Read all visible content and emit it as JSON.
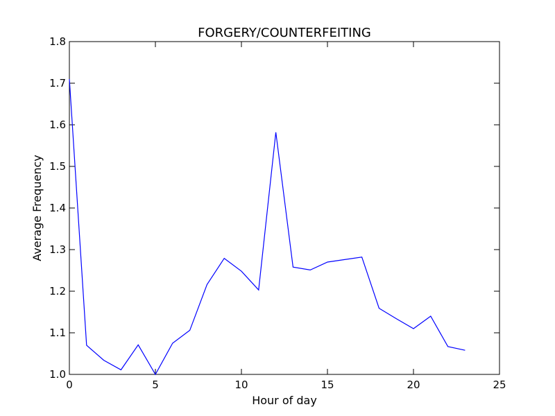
{
  "chart_data": {
    "type": "line",
    "title": "FORGERY/COUNTERFEITING",
    "xlabel": "Hour of day",
    "ylabel": "Average Frequency",
    "xlim": [
      0,
      25
    ],
    "ylim": [
      1.0,
      1.8
    ],
    "xticks": [
      0,
      5,
      10,
      15,
      20,
      25
    ],
    "yticks": [
      1.0,
      1.1,
      1.2,
      1.3,
      1.4,
      1.5,
      1.6,
      1.7,
      1.8
    ],
    "grid": false,
    "line_color": "#0000ff",
    "series": [
      {
        "x": [
          0,
          1,
          2,
          3,
          4,
          5,
          6,
          7,
          8,
          9,
          10,
          11,
          12,
          13,
          14,
          15,
          16,
          17,
          18,
          19,
          20,
          21,
          22,
          23
        ],
        "values": [
          1.71,
          1.07,
          1.034,
          1.011,
          1.071,
          1.0,
          1.075,
          1.106,
          1.216,
          1.279,
          1.248,
          1.203,
          1.582,
          1.258,
          1.251,
          1.27,
          1.276,
          1.282,
          1.159,
          1.134,
          1.11,
          1.14,
          1.067,
          1.058
        ]
      }
    ]
  }
}
